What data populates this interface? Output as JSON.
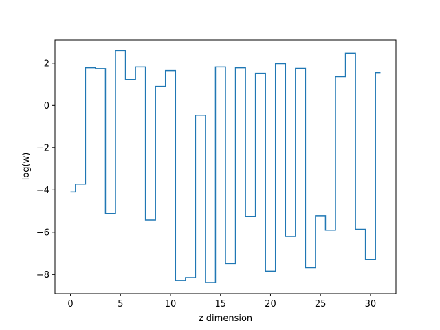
{
  "chart_data": {
    "type": "line",
    "drawstyle": "steps-mid",
    "title": "",
    "xlabel": "z dimension",
    "ylabel": "log(w)",
    "xlim": [
      -1.55,
      32.55
    ],
    "ylim": [
      -8.9,
      3.1
    ],
    "xticks": [
      0,
      5,
      10,
      15,
      20,
      25,
      30
    ],
    "yticks": [
      -8,
      -6,
      -4,
      -2,
      0,
      2
    ],
    "grid": false,
    "legend": "none",
    "series": [
      {
        "color": "#1f77b4",
        "x": [
          0,
          1,
          2,
          3,
          4,
          5,
          6,
          7,
          8,
          9,
          10,
          11,
          12,
          13,
          14,
          15,
          16,
          17,
          18,
          19,
          20,
          21,
          22,
          23,
          24,
          25,
          26,
          27,
          28,
          29,
          30,
          31
        ],
        "y": [
          -4.1,
          -3.72,
          1.78,
          1.74,
          -5.12,
          2.6,
          1.22,
          1.82,
          -5.42,
          0.9,
          1.65,
          -8.28,
          -8.15,
          -0.47,
          -8.38,
          1.82,
          -7.48,
          1.78,
          -5.25,
          1.52,
          -7.84,
          1.98,
          -6.2,
          1.75,
          -7.68,
          -5.22,
          -5.9,
          1.36,
          2.47,
          -5.86,
          -7.28,
          1.55
        ]
      }
    ]
  }
}
